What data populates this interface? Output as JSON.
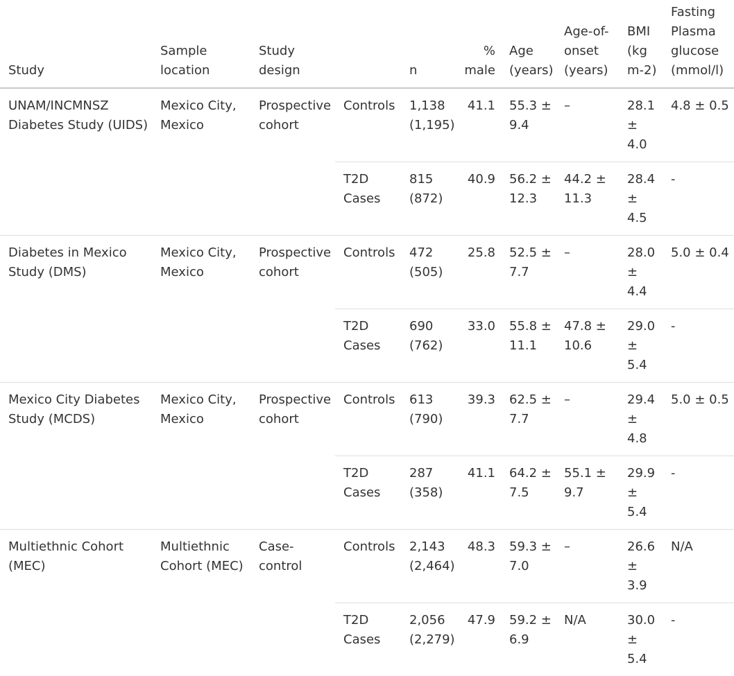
{
  "headers": {
    "study": "Study",
    "sample_location": "Sample\nlocation",
    "study_design": "Study\ndesign",
    "group": "",
    "n": "n",
    "pct_male": "%\nmale",
    "age": "Age\n(years)",
    "age_onset": "Age-of-\nonset\n(years)",
    "bmi": "BMI\n(kg\nm-2)",
    "fpg": "Fasting\nPlasma\nglucose\n(mmol/l)"
  },
  "studies": [
    {
      "name": "UNAM/INCMNSZ Diabetes Study (UIDS)",
      "location": "Mexico City, Mexico",
      "design": "Prospective cohort",
      "rows": [
        {
          "group": "Controls",
          "n": "1,138\n(1,195)",
          "male": "41.1",
          "age": "55.3 ±\n9.4",
          "onset": "–",
          "bmi": "28.1\n± 4.0",
          "fpg": "4.8 ± 0.5"
        },
        {
          "group": "T2D\nCases",
          "n": "815\n(872)",
          "male": "40.9",
          "age": "56.2 ±\n12.3",
          "onset": "44.2 ±\n11.3",
          "bmi": "28.4\n± 4.5",
          "fpg": "-"
        }
      ]
    },
    {
      "name": "Diabetes in Mexico Study (DMS)",
      "location": "Mexico City, Mexico",
      "design": "Prospective cohort",
      "rows": [
        {
          "group": "Controls",
          "n": "472\n(505)",
          "male": "25.8",
          "age": "52.5 ±\n7.7",
          "onset": "–",
          "bmi": "28.0\n± 4.4",
          "fpg": "5.0 ± 0.4"
        },
        {
          "group": "T2D\nCases",
          "n": "690\n(762)",
          "male": "33.0",
          "age": "55.8 ±\n11.1",
          "onset": "47.8 ±\n10.6",
          "bmi": "29.0\n± 5.4",
          "fpg": "-"
        }
      ]
    },
    {
      "name": "Mexico City Diabetes Study (MCDS)",
      "location": "Mexico City, Mexico",
      "design": "Prospective cohort",
      "rows": [
        {
          "group": "Controls",
          "n": "613\n(790)",
          "male": "39.3",
          "age": "62.5 ±\n7.7",
          "onset": "–",
          "bmi": "29.4\n± 4.8",
          "fpg": "5.0 ± 0.5"
        },
        {
          "group": "T2D\nCases",
          "n": "287\n(358)",
          "male": "41.1",
          "age": "64.2 ±\n7.5",
          "onset": "55.1 ±\n9.7",
          "bmi": "29.9\n± 5.4",
          "fpg": "-"
        }
      ]
    },
    {
      "name": "Multiethnic Cohort (MEC)",
      "location": "Multiethnic Cohort (MEC)",
      "design": "Case-\ncontrol",
      "rows": [
        {
          "group": "Controls",
          "n": "2,143\n(2,464)",
          "male": "48.3",
          "age": "59.3 ±\n7.0",
          "onset": "–",
          "bmi": "26.6\n± 3.9",
          "fpg": "N/A"
        },
        {
          "group": "T2D\nCases",
          "n": "2,056\n(2,279)",
          "male": "47.9",
          "age": "59.2 ±\n6.9",
          "onset": "N/A",
          "bmi": "30.0\n± 5.4",
          "fpg": "-"
        }
      ]
    }
  ]
}
